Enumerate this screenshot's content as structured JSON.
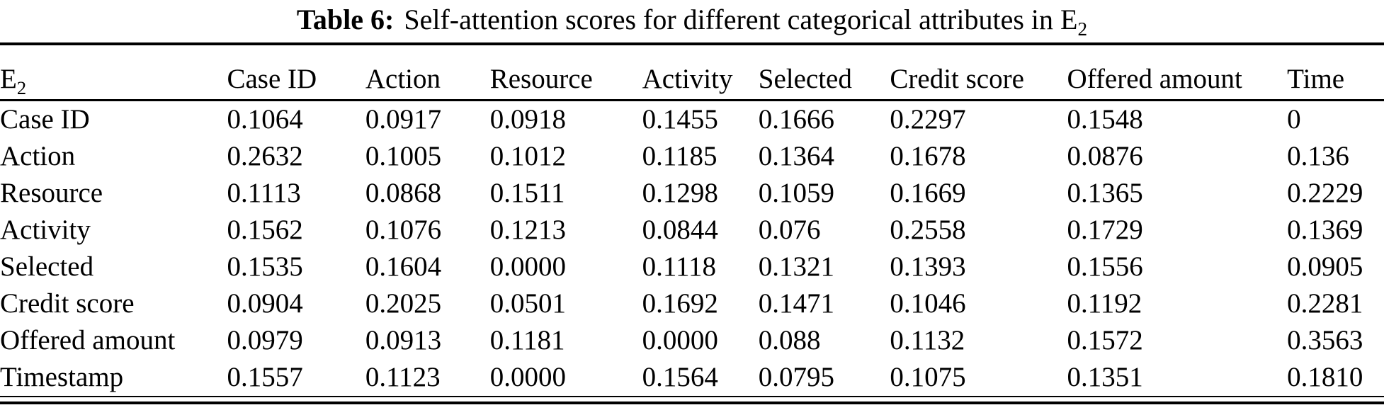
{
  "caption": {
    "label": "Table 6:",
    "text": "Self-attention scores for different categorical attributes in E",
    "subscript": "2"
  },
  "table": {
    "corner": {
      "base": "E",
      "sub": "2"
    },
    "columns": [
      "Case ID",
      "Action",
      "Resource",
      "Activity",
      "Selected",
      "Credit score",
      "Offered amount",
      "Time"
    ],
    "rows": [
      {
        "label": "Case ID",
        "values": [
          "0.1064",
          "0.0917",
          "0.0918",
          "0.1455",
          "0.1666",
          "0.2297",
          "0.1548",
          "0"
        ]
      },
      {
        "label": "Action",
        "values": [
          "0.2632",
          "0.1005",
          "0.1012",
          "0.1185",
          "0.1364",
          "0.1678",
          "0.0876",
          "0.136"
        ]
      },
      {
        "label": "Resource",
        "values": [
          "0.1113",
          "0.0868",
          "0.1511",
          "0.1298",
          "0.1059",
          "0.1669",
          "0.1365",
          "0.2229"
        ]
      },
      {
        "label": "Activity",
        "values": [
          "0.1562",
          "0.1076",
          "0.1213",
          "0.0844",
          "0.076",
          "0.2558",
          "0.1729",
          "0.1369"
        ]
      },
      {
        "label": "Selected",
        "values": [
          "0.1535",
          "0.1604",
          "0.0000",
          "0.1118",
          "0.1321",
          "0.1393",
          "0.1556",
          "0.0905"
        ]
      },
      {
        "label": "Credit score",
        "values": [
          "0.0904",
          "0.2025",
          "0.0501",
          "0.1692",
          "0.1471",
          "0.1046",
          "0.1192",
          "0.2281"
        ]
      },
      {
        "label": "Offered amount",
        "values": [
          "0.0979",
          "0.0913",
          "0.1181",
          "0.0000",
          "0.088",
          "0.1132",
          "0.1572",
          "0.3563"
        ]
      },
      {
        "label": "Timestamp",
        "values": [
          "0.1557",
          "0.1123",
          "0.0000",
          "0.1564",
          "0.0795",
          "0.1075",
          "0.1351",
          "0.1810"
        ]
      }
    ]
  },
  "colors": {
    "text": "#000000",
    "background": "#ffffff",
    "rule": "#000000"
  }
}
